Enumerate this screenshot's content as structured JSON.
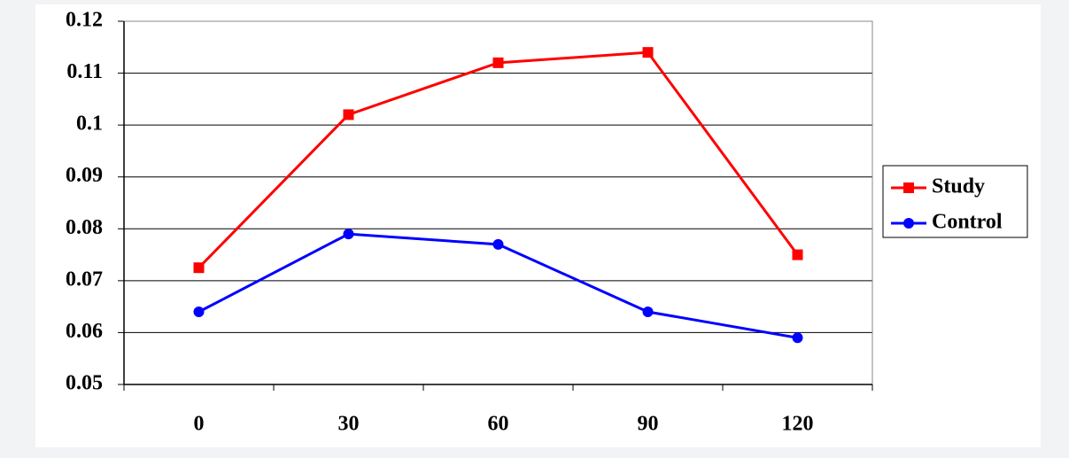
{
  "chart_data": {
    "type": "line",
    "categories": [
      "0",
      "30",
      "60",
      "90",
      "120"
    ],
    "series": [
      {
        "name": "Study",
        "color": "#ff0000",
        "marker": "square",
        "values": [
          0.0725,
          0.102,
          0.112,
          0.114,
          0.075
        ]
      },
      {
        "name": "Control",
        "color": "#0000ff",
        "marker": "circle",
        "values": [
          0.064,
          0.079,
          0.077,
          0.064,
          0.059
        ]
      }
    ],
    "ylim": [
      0.05,
      0.12
    ],
    "yticks": [
      0.05,
      0.06,
      0.07,
      0.08,
      0.09,
      0.1,
      0.11,
      0.12
    ],
    "grid": true,
    "legend": "right"
  }
}
